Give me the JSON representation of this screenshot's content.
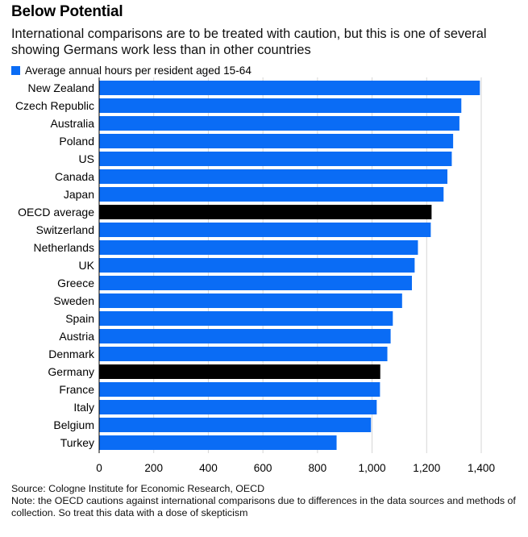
{
  "title": "Below Potential",
  "subtitle": "International comparisons are to be treated with caution, but this is one of several showing Germans work less than in other countries",
  "colors": {
    "primary": "#0a6cf5",
    "highlight": "#000000",
    "text": "#000000"
  },
  "chart_data": {
    "type": "bar",
    "orientation": "horizontal",
    "title": "Below Potential",
    "legend": [
      "Average annual hours per resident aged 15-64"
    ],
    "legend_position": "top-left",
    "categories": [
      "New Zealand",
      "Czech Republic",
      "Australia",
      "Poland",
      "US",
      "Canada",
      "Japan",
      "OECD average",
      "Switzerland",
      "Netherlands",
      "UK",
      "Greece",
      "Sweden",
      "Spain",
      "Austria",
      "Denmark",
      "Germany",
      "France",
      "Italy",
      "Belgium",
      "Turkey"
    ],
    "values": [
      1395,
      1327,
      1320,
      1297,
      1292,
      1276,
      1262,
      1218,
      1215,
      1168,
      1156,
      1146,
      1110,
      1076,
      1068,
      1056,
      1030,
      1029,
      1017,
      996,
      870
    ],
    "highlighted": [
      "OECD average",
      "Germany"
    ],
    "xlim": [
      0,
      1400
    ],
    "xticks": [
      "0",
      "200",
      "400",
      "600",
      "800",
      "1,000",
      "1,200",
      "1,400"
    ],
    "xtick_values": [
      0,
      200,
      400,
      600,
      800,
      1000,
      1200,
      1400
    ],
    "grid": "vertical"
  },
  "footer": {
    "source": "Source: Cologne Institute for Economic Research, OECD",
    "note": "Note: the OECD cautions against international comparisons due to differences in the data sources and methods of collection. So treat this data with a dose of skepticism"
  }
}
